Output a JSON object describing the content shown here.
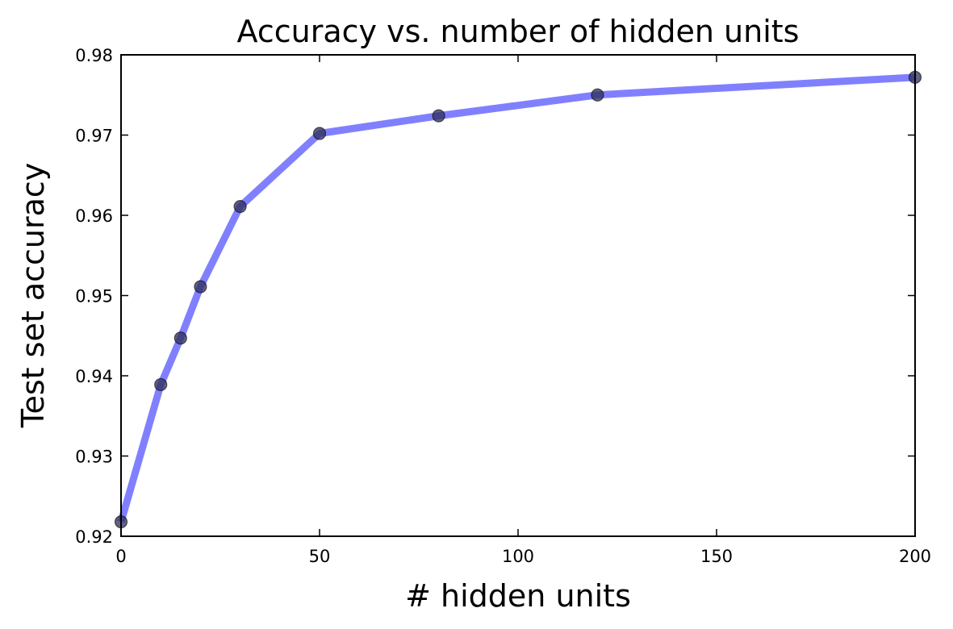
{
  "chart_data": {
    "type": "line",
    "title": "Accuracy vs. number of hidden units",
    "xlabel": "# hidden units",
    "ylabel": "Test set accuracy",
    "xlim": [
      0,
      200
    ],
    "ylim": [
      0.92,
      0.98
    ],
    "x_ticks": [
      "0",
      "50",
      "100",
      "150",
      "200"
    ],
    "y_ticks": [
      "0.92",
      "0.93",
      "0.94",
      "0.95",
      "0.96",
      "0.97",
      "0.98"
    ],
    "grid": false,
    "series": [
      {
        "x": [
          0,
          10,
          15,
          20,
          30,
          50,
          80,
          120,
          200
        ],
        "y": [
          0.9218,
          0.9389,
          0.9447,
          0.9511,
          0.9611,
          0.9702,
          0.9724,
          0.975,
          0.9772
        ],
        "line_color": "#8080ff",
        "marker_color": "#2d2d59"
      }
    ]
  }
}
